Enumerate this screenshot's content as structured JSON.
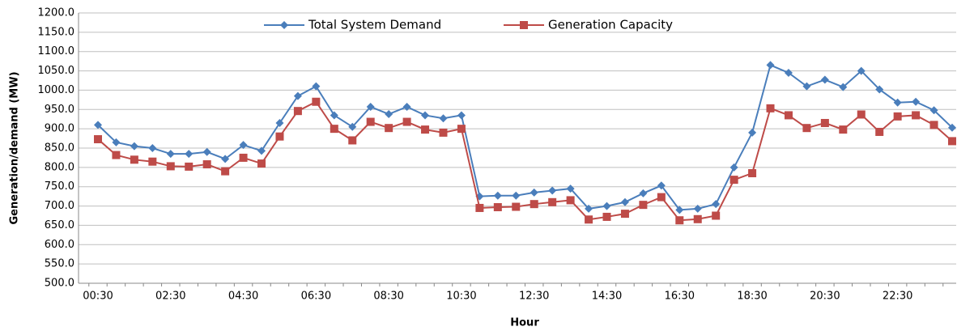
{
  "chart_data": {
    "type": "line",
    "x_label": "Hour",
    "y_label": "Generation/demand (MW)",
    "categories": [
      "00:30",
      null,
      null,
      null,
      "02:30",
      null,
      null,
      null,
      "04:30",
      null,
      null,
      null,
      "06:30",
      null,
      null,
      null,
      "08:30",
      null,
      null,
      null,
      "10:30",
      null,
      null,
      null,
      "12:30",
      null,
      null,
      null,
      "14:30",
      null,
      null,
      null,
      "16:30",
      null,
      null,
      null,
      "18:30",
      null,
      null,
      null,
      "20:30",
      null,
      null,
      null,
      "22:30",
      null,
      null,
      null
    ],
    "series": [
      {
        "name": "Total System Demand",
        "color": "#4a7ebb",
        "marker": "diamond",
        "values": [
          910,
          865,
          855,
          850,
          835,
          835,
          840,
          822,
          858,
          843,
          915,
          985,
          1010,
          935,
          905,
          957,
          938,
          957,
          935,
          927,
          935,
          725,
          727,
          727,
          735,
          740,
          745,
          693,
          700,
          710,
          733,
          753,
          690,
          693,
          705,
          800,
          890,
          1065,
          1045,
          1010,
          1027,
          1008,
          1050,
          1002,
          968,
          970,
          948,
          903
        ]
      },
      {
        "name": "Generation Capacity",
        "color": "#be4b48",
        "marker": "square",
        "values": [
          873,
          832,
          820,
          815,
          803,
          802,
          808,
          790,
          825,
          810,
          880,
          946,
          970,
          900,
          870,
          918,
          902,
          918,
          898,
          890,
          900,
          695,
          697,
          698,
          705,
          710,
          715,
          665,
          672,
          680,
          703,
          723,
          663,
          666,
          675,
          768,
          785,
          953,
          935,
          902,
          915,
          898,
          937,
          892,
          932,
          935,
          910,
          868
        ]
      }
    ],
    "ylim": [
      500,
      1200
    ],
    "yticks": [
      {
        "value": 500,
        "label": "500.0"
      },
      {
        "value": 550,
        "label": "550.0"
      },
      {
        "value": 600,
        "label": "600.0"
      },
      {
        "value": 650,
        "label": "650.0"
      },
      {
        "value": 700,
        "label": "700.0"
      },
      {
        "value": 750,
        "label": "750.0"
      },
      {
        "value": 800,
        "label": "800.0"
      },
      {
        "value": 850,
        "label": "850.0"
      },
      {
        "value": 900,
        "label": "900.0"
      },
      {
        "value": 950,
        "label": "950.0"
      },
      {
        "value": 1000,
        "label": "1000.0"
      },
      {
        "value": 1050,
        "label": "1050.0"
      },
      {
        "value": 1100,
        "label": "1100.0"
      },
      {
        "value": 1150,
        "label": "1150.0"
      },
      {
        "value": 1200,
        "label": "1200.0"
      }
    ],
    "grid": true,
    "legend": "top"
  }
}
